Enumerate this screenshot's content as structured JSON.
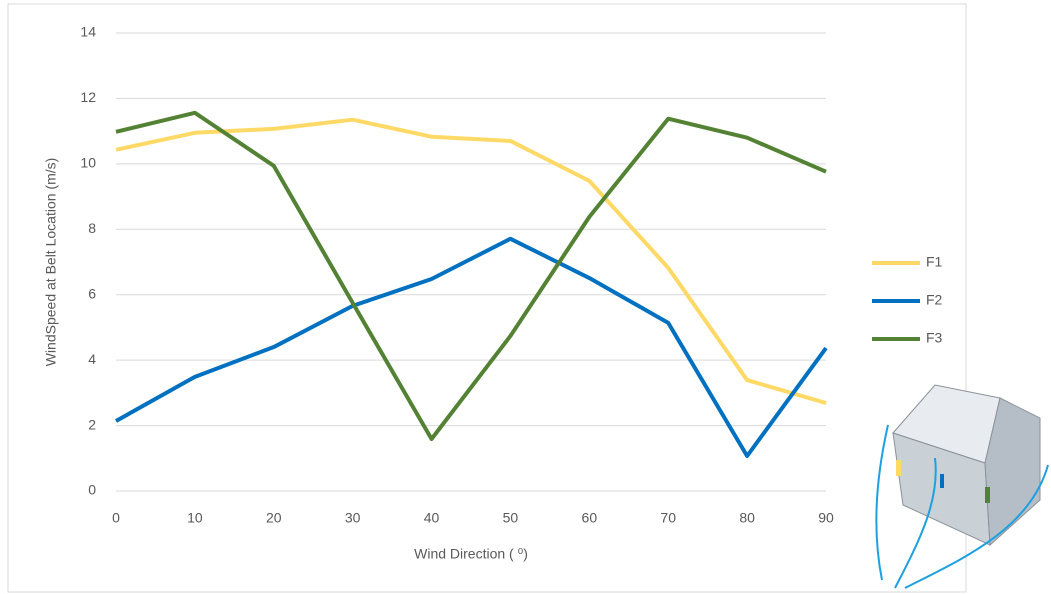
{
  "chart_data": {
    "type": "line",
    "x_label": "Wind Direction ( ⁰)",
    "y_label": "WindSpeed at Belt Location (m/s)",
    "x": [
      0,
      10,
      20,
      30,
      40,
      50,
      60,
      70,
      80,
      90
    ],
    "xlim": [
      0,
      90
    ],
    "xticks": [
      0,
      10,
      20,
      30,
      40,
      50,
      60,
      70,
      80,
      90
    ],
    "ylim": [
      0,
      14
    ],
    "yticks": [
      0,
      2,
      4,
      6,
      8,
      10,
      12,
      14
    ],
    "grid": true,
    "legend": "right",
    "series": [
      {
        "name": "F1",
        "color": "#ffd966",
        "values": [
          10.43,
          10.95,
          11.07,
          11.35,
          10.83,
          10.7,
          9.48,
          6.82,
          3.39,
          2.69
        ]
      },
      {
        "name": "F2",
        "color": "#0070c0",
        "values": [
          2.14,
          3.49,
          4.4,
          5.66,
          6.48,
          7.71,
          6.51,
          5.14,
          1.07,
          4.37
        ]
      },
      {
        "name": "F3",
        "color": "#548235",
        "values": [
          10.98,
          11.56,
          9.94,
          5.75,
          1.59,
          4.74,
          8.38,
          11.38,
          10.8,
          9.76
        ]
      }
    ]
  }
}
